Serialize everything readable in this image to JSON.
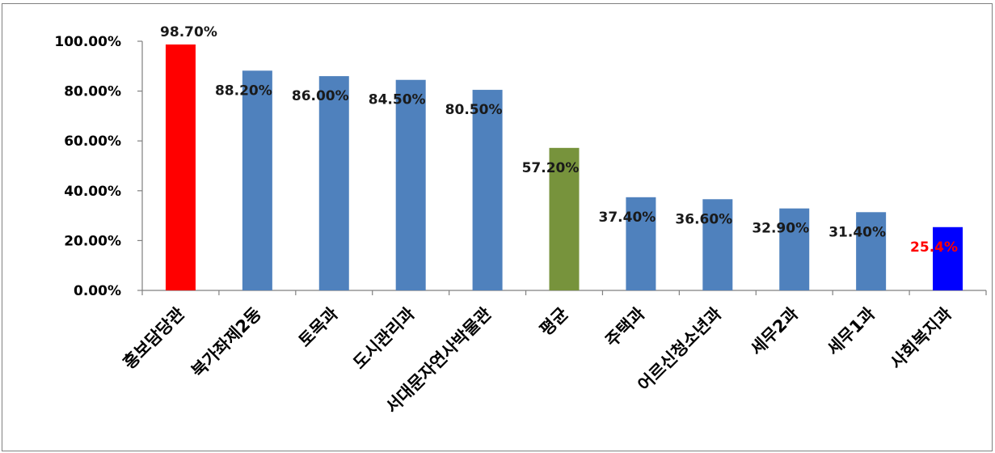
{
  "chart_data": {
    "type": "bar",
    "categories": [
      "홍보담당관",
      "북가좌제2동",
      "토목과",
      "도시관리과",
      "서대문자연사박물관",
      "평균",
      "주택과",
      "어르신청소년과",
      "세무2과",
      "세무1과",
      "사회복지과"
    ],
    "values": [
      98.7,
      88.2,
      86.0,
      84.5,
      80.5,
      57.2,
      37.4,
      36.6,
      32.9,
      31.4,
      25.4
    ],
    "data_labels": [
      "98.70%",
      "88.20%",
      "86.00%",
      "84.50%",
      "80.50%",
      "57.20%",
      "37.40%",
      "36.60%",
      "32.90%",
      "31.40%",
      "25.4%"
    ],
    "bar_colors": [
      "#ff0000",
      "#4f81bd",
      "#4f81bd",
      "#4f81bd",
      "#4f81bd",
      "#77933c",
      "#4f81bd",
      "#4f81bd",
      "#4f81bd",
      "#4f81bd",
      "#0000ff"
    ],
    "label_colors": [
      "#1a1a1a",
      "#1a1a1a",
      "#1a1a1a",
      "#1a1a1a",
      "#1a1a1a",
      "#1a1a1a",
      "#1a1a1a",
      "#1a1a1a",
      "#1a1a1a",
      "#1a1a1a",
      "#ff0000"
    ],
    "y_ticks": [
      0,
      20,
      40,
      60,
      80,
      100
    ],
    "y_tick_labels": [
      "0.00%",
      "20.00%",
      "40.00%",
      "60.00%",
      "80.00%",
      "100.00%"
    ],
    "ylim": [
      0,
      100
    ],
    "grid": false,
    "legend": "none"
  }
}
